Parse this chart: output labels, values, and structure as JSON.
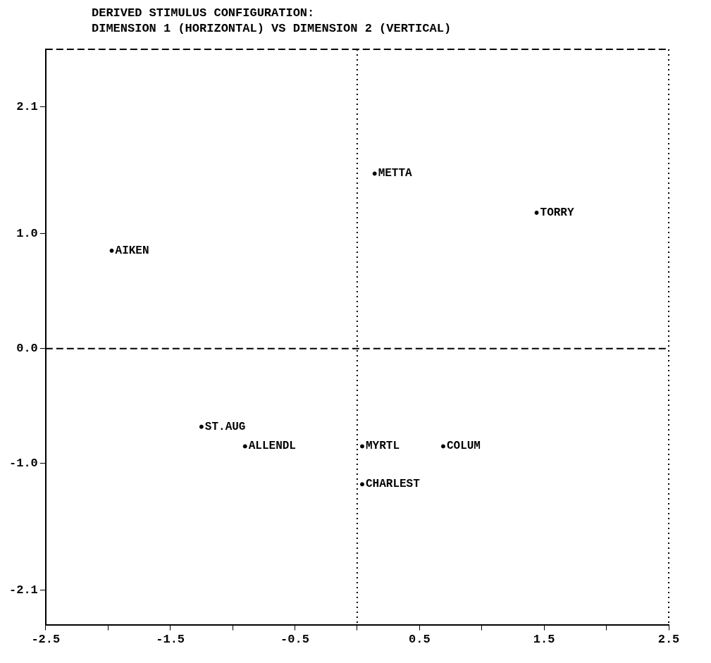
{
  "chart_data": {
    "type": "scatter",
    "title": "DERIVED STIMULUS CONFIGURATION:",
    "subtitle": "DIMENSION 1 (HORIZONTAL) VS DIMENSION 2 (VERTICAL)",
    "series": [
      {
        "name": "AIKEN",
        "color": "#000000",
        "x": [
          -1.97
        ],
        "values": [
          0.85
        ]
      },
      {
        "name": "METTA",
        "color": "#000000",
        "x": [
          0.14
        ],
        "values": [
          1.52
        ]
      },
      {
        "name": "TORRY",
        "color": "#000000",
        "x": [
          1.44
        ],
        "values": [
          1.18
        ]
      },
      {
        "name": "ST.AUG",
        "color": "#000000",
        "x": [
          -1.25
        ],
        "values": [
          -0.68
        ]
      },
      {
        "name": "ALLENDL",
        "color": "#000000",
        "x": [
          -0.9
        ],
        "values": [
          -0.85
        ]
      },
      {
        "name": "MYRTL",
        "color": "#000000",
        "x": [
          0.04
        ],
        "values": [
          -0.85
        ]
      },
      {
        "name": "COLUM",
        "color": "#000000",
        "x": [
          0.69
        ],
        "values": [
          -0.85
        ]
      },
      {
        "name": "CHARLEST",
        "color": "#000000",
        "x": [
          0.04
        ],
        "values": [
          -1.18
        ]
      }
    ],
    "xlim": [
      -2.5,
      2.5
    ],
    "ylim": [
      -2.4,
      2.6
    ],
    "xticks": [
      -2.5,
      {
        "value": -2,
        "label": null
      },
      -1.5,
      {
        "value": -1,
        "label": null
      },
      -0.5,
      {
        "value": 0,
        "label": null
      },
      0.5,
      {
        "value": 1,
        "label": null
      },
      1.5,
      {
        "value": 2,
        "label": null
      },
      2.5
    ],
    "yticks": [
      2.1,
      {
        "value": 1,
        "label": "1.0"
      },
      {
        "value": 0,
        "label": "0.0"
      },
      {
        "value": -1,
        "label": "-1.0"
      },
      -2.1
    ],
    "ref_lines": [
      {
        "axis": "x",
        "value": 0,
        "line_style": "dotted"
      },
      {
        "axis": "y",
        "value": 0,
        "line_style": "dashed"
      }
    ],
    "grid": false,
    "legend": false,
    "marker": "circle"
  }
}
